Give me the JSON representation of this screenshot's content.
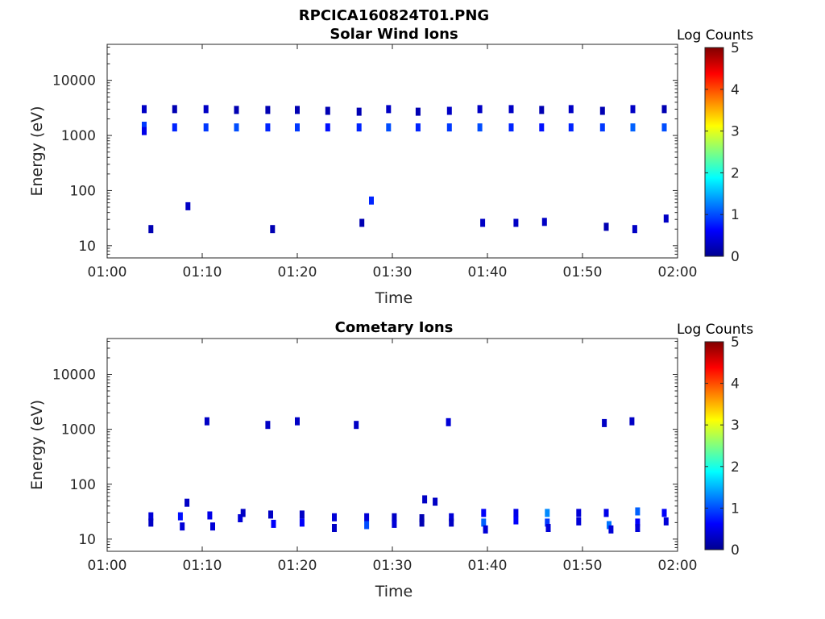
{
  "figure_title": "RPCICA160824T01.PNG",
  "chart_data": [
    {
      "type": "heatmap",
      "title": "Solar Wind Ions",
      "xlabel": "Time",
      "ylabel": "Energy (eV)",
      "x_ticks": [
        "01:00",
        "01:10",
        "01:20",
        "01:30",
        "01:40",
        "01:50",
        "02:00"
      ],
      "x_range_minutes": [
        0,
        60
      ],
      "y_scale": "log",
      "y_range": [
        6,
        45000
      ],
      "y_ticks": [
        {
          "value": 10,
          "label": "10"
        },
        {
          "value": 100,
          "label": "100"
        },
        {
          "value": 1000,
          "label": "1000"
        },
        {
          "value": 10000,
          "label": "10000"
        }
      ],
      "colorbar": {
        "label": "Log Counts",
        "range": [
          0,
          5
        ],
        "ticks": [
          "0",
          "1",
          "2",
          "3",
          "4",
          "5"
        ]
      },
      "cells": [
        {
          "t": 3.9,
          "e": 3000,
          "c": 0.3
        },
        {
          "t": 3.9,
          "e": 1500,
          "c": 0.9
        },
        {
          "t": 3.9,
          "e": 1200,
          "c": 0.5
        },
        {
          "t": 7.1,
          "e": 3000,
          "c": 0.2
        },
        {
          "t": 7.1,
          "e": 1400,
          "c": 0.8
        },
        {
          "t": 10.4,
          "e": 3000,
          "c": 0.3
        },
        {
          "t": 10.4,
          "e": 1400,
          "c": 0.9
        },
        {
          "t": 13.6,
          "e": 2900,
          "c": 0.2
        },
        {
          "t": 13.6,
          "e": 1400,
          "c": 1.0
        },
        {
          "t": 16.9,
          "e": 2900,
          "c": 0.2
        },
        {
          "t": 16.9,
          "e": 1400,
          "c": 0.8
        },
        {
          "t": 20.0,
          "e": 2900,
          "c": 0.2
        },
        {
          "t": 20.0,
          "e": 1400,
          "c": 0.9
        },
        {
          "t": 23.2,
          "e": 2800,
          "c": 0.2
        },
        {
          "t": 23.2,
          "e": 1400,
          "c": 0.7
        },
        {
          "t": 26.5,
          "e": 2700,
          "c": 0.2
        },
        {
          "t": 26.5,
          "e": 1400,
          "c": 0.8
        },
        {
          "t": 29.6,
          "e": 3000,
          "c": 0.3
        },
        {
          "t": 29.6,
          "e": 1400,
          "c": 1.0
        },
        {
          "t": 32.7,
          "e": 2700,
          "c": 0.2
        },
        {
          "t": 32.7,
          "e": 1400,
          "c": 0.8
        },
        {
          "t": 36.0,
          "e": 2800,
          "c": 0.3
        },
        {
          "t": 36.0,
          "e": 1400,
          "c": 0.9
        },
        {
          "t": 39.2,
          "e": 3000,
          "c": 0.3
        },
        {
          "t": 39.2,
          "e": 1400,
          "c": 1.0
        },
        {
          "t": 42.5,
          "e": 3000,
          "c": 0.3
        },
        {
          "t": 42.5,
          "e": 1400,
          "c": 0.8
        },
        {
          "t": 45.7,
          "e": 2900,
          "c": 0.2
        },
        {
          "t": 45.7,
          "e": 1400,
          "c": 0.7
        },
        {
          "t": 48.8,
          "e": 3000,
          "c": 0.3
        },
        {
          "t": 48.8,
          "e": 1400,
          "c": 0.8
        },
        {
          "t": 52.1,
          "e": 2800,
          "c": 0.2
        },
        {
          "t": 52.1,
          "e": 1400,
          "c": 0.9
        },
        {
          "t": 55.3,
          "e": 3000,
          "c": 0.3
        },
        {
          "t": 55.3,
          "e": 1400,
          "c": 1.1
        },
        {
          "t": 58.6,
          "e": 3000,
          "c": 0.2
        },
        {
          "t": 58.6,
          "e": 1400,
          "c": 1.0
        },
        {
          "t": 4.6,
          "e": 20,
          "c": 0.2
        },
        {
          "t": 8.5,
          "e": 52,
          "c": 0.3
        },
        {
          "t": 17.4,
          "e": 20,
          "c": 0.2
        },
        {
          "t": 26.8,
          "e": 26,
          "c": 0.2
        },
        {
          "t": 27.8,
          "e": 66,
          "c": 0.8
        },
        {
          "t": 39.5,
          "e": 26,
          "c": 0.3
        },
        {
          "t": 43.0,
          "e": 26,
          "c": 0.3
        },
        {
          "t": 46.0,
          "e": 27,
          "c": 0.3
        },
        {
          "t": 52.5,
          "e": 22,
          "c": 0.2
        },
        {
          "t": 55.5,
          "e": 20,
          "c": 0.3
        },
        {
          "t": 58.8,
          "e": 31,
          "c": 0.3
        }
      ]
    },
    {
      "type": "heatmap",
      "title": "Cometary Ions",
      "xlabel": "Time",
      "ylabel": "Energy (eV)",
      "x_ticks": [
        "01:00",
        "01:10",
        "01:20",
        "01:30",
        "01:40",
        "01:50",
        "02:00"
      ],
      "x_range_minutes": [
        0,
        60
      ],
      "y_scale": "log",
      "y_range": [
        6,
        45000
      ],
      "y_ticks": [
        {
          "value": 10,
          "label": "10"
        },
        {
          "value": 100,
          "label": "100"
        },
        {
          "value": 1000,
          "label": "1000"
        },
        {
          "value": 10000,
          "label": "10000"
        }
      ],
      "colorbar": {
        "label": "Log Counts",
        "range": [
          0,
          5
        ],
        "ticks": [
          "0",
          "1",
          "2",
          "3",
          "4",
          "5"
        ]
      },
      "cells": [
        {
          "t": 4.6,
          "e": 26,
          "c": 0.4
        },
        {
          "t": 4.6,
          "e": 20,
          "c": 0.3
        },
        {
          "t": 7.7,
          "e": 26,
          "c": 0.7
        },
        {
          "t": 7.9,
          "e": 17,
          "c": 0.4
        },
        {
          "t": 8.4,
          "e": 46,
          "c": 0.3
        },
        {
          "t": 10.8,
          "e": 27,
          "c": 0.5
        },
        {
          "t": 11.1,
          "e": 17,
          "c": 0.4
        },
        {
          "t": 14.0,
          "e": 24,
          "c": 0.4
        },
        {
          "t": 14.3,
          "e": 30,
          "c": 0.3
        },
        {
          "t": 17.2,
          "e": 28,
          "c": 0.3
        },
        {
          "t": 17.5,
          "e": 19,
          "c": 0.6
        },
        {
          "t": 20.5,
          "e": 28,
          "c": 0.3
        },
        {
          "t": 20.5,
          "e": 20,
          "c": 0.6
        },
        {
          "t": 23.9,
          "e": 25,
          "c": 0.4
        },
        {
          "t": 23.9,
          "e": 16,
          "c": 0.3
        },
        {
          "t": 27.3,
          "e": 25,
          "c": 0.4
        },
        {
          "t": 27.3,
          "e": 18,
          "c": 1.0
        },
        {
          "t": 30.2,
          "e": 25,
          "c": 0.3
        },
        {
          "t": 30.2,
          "e": 19,
          "c": 0.4
        },
        {
          "t": 33.1,
          "e": 24,
          "c": 0.2
        },
        {
          "t": 33.1,
          "e": 20,
          "c": 0.2
        },
        {
          "t": 33.4,
          "e": 53,
          "c": 0.3
        },
        {
          "t": 34.5,
          "e": 48,
          "c": 0.3
        },
        {
          "t": 36.2,
          "e": 25,
          "c": 0.4
        },
        {
          "t": 36.2,
          "e": 20,
          "c": 0.3
        },
        {
          "t": 39.6,
          "e": 30,
          "c": 0.6
        },
        {
          "t": 39.6,
          "e": 20,
          "c": 1.1
        },
        {
          "t": 39.8,
          "e": 15,
          "c": 0.4
        },
        {
          "t": 43.0,
          "e": 30,
          "c": 0.5
        },
        {
          "t": 43.0,
          "e": 22,
          "c": 0.6
        },
        {
          "t": 46.3,
          "e": 30,
          "c": 1.3
        },
        {
          "t": 46.3,
          "e": 20,
          "c": 0.9
        },
        {
          "t": 46.4,
          "e": 16,
          "c": 0.4
        },
        {
          "t": 49.6,
          "e": 30,
          "c": 0.4
        },
        {
          "t": 49.6,
          "e": 21,
          "c": 0.4
        },
        {
          "t": 52.5,
          "e": 30,
          "c": 0.5
        },
        {
          "t": 52.8,
          "e": 18,
          "c": 1.2
        },
        {
          "t": 53.0,
          "e": 15,
          "c": 0.4
        },
        {
          "t": 55.8,
          "e": 32,
          "c": 1.1
        },
        {
          "t": 55.8,
          "e": 20,
          "c": 0.6
        },
        {
          "t": 55.8,
          "e": 16,
          "c": 0.4
        },
        {
          "t": 58.6,
          "e": 30,
          "c": 0.6
        },
        {
          "t": 58.8,
          "e": 21,
          "c": 0.4
        },
        {
          "t": 10.5,
          "e": 1400,
          "c": 0.3
        },
        {
          "t": 16.9,
          "e": 1200,
          "c": 0.3
        },
        {
          "t": 20.0,
          "e": 1400,
          "c": 0.3
        },
        {
          "t": 26.2,
          "e": 1200,
          "c": 0.3
        },
        {
          "t": 35.9,
          "e": 1350,
          "c": 0.4
        },
        {
          "t": 52.3,
          "e": 1300,
          "c": 0.3
        },
        {
          "t": 55.2,
          "e": 1400,
          "c": 0.3
        }
      ]
    }
  ]
}
